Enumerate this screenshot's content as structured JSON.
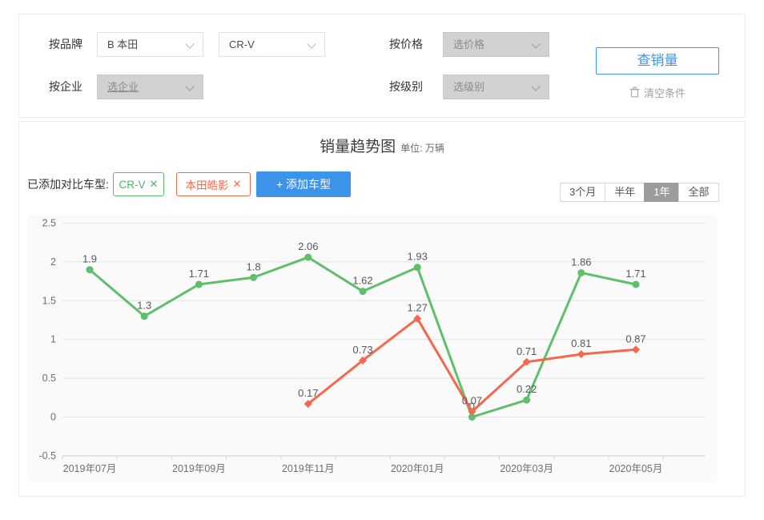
{
  "filters": {
    "brand": {
      "label": "按品牌",
      "select1_value": "B 本田",
      "select2_value": "CR-V"
    },
    "price": {
      "label": "按价格",
      "placeholder": "选价格"
    },
    "company": {
      "label": "按企业",
      "placeholder": "选企业"
    },
    "level": {
      "label": "按级别",
      "placeholder": "选级别"
    },
    "search_button": "查销量",
    "clear_button": "清空条件"
  },
  "chart_panel": {
    "title": "销量趋势图",
    "unit": "单位: 万辆",
    "compare_label": "已添加对比车型:",
    "tags": [
      {
        "label": "CR-V",
        "color": "#4db36a"
      },
      {
        "label": "本田皓影",
        "color": "#f56a4d"
      }
    ],
    "add_button": "+ 添加车型",
    "range_buttons": [
      {
        "label": "3个月",
        "active": false
      },
      {
        "label": "半年",
        "active": false
      },
      {
        "label": "1年",
        "active": true
      },
      {
        "label": "全部",
        "active": false
      }
    ]
  },
  "icons": {
    "close": "✕"
  },
  "colors": {
    "primary_blue": "#3f94e9",
    "green_series": "#5fbf6b",
    "red_series": "#f4684f",
    "grid": "#e3e3e3",
    "axis": "#c7d2dc"
  },
  "chart_data": {
    "type": "line",
    "title": "销量趋势图",
    "unit": "万辆",
    "x": [
      "2019年07月",
      "2019年08月",
      "2019年09月",
      "2019年10月",
      "2019年11月",
      "2019年12月",
      "2020年01月",
      "2020年02月",
      "2020年03月",
      "2020年04月",
      "2020年05月"
    ],
    "x_tick_labels": [
      "2019年07月",
      "2019年09月",
      "2019年11月",
      "2020年01月",
      "2020年03月",
      "2020年05月"
    ],
    "ylim": [
      -0.5,
      2.5
    ],
    "yticks": [
      2.5,
      2,
      1.5,
      1,
      0.5,
      0,
      -0.5
    ],
    "grid": true,
    "legend_position": "none",
    "series": [
      {
        "name": "CR-V",
        "color": "#5fbf6b",
        "marker": "circle",
        "start_index": 0,
        "values": [
          1.9,
          1.3,
          1.71,
          1.8,
          2.06,
          1.62,
          1.93,
          0,
          0.22,
          1.86,
          1.71
        ],
        "labels": [
          "1.9",
          "1.3",
          "1.71",
          "1.8",
          "2.06",
          "1.62",
          "1.93",
          "0",
          "0.22",
          "1.86",
          "1.71"
        ]
      },
      {
        "name": "本田皓影",
        "color": "#f4684f",
        "marker": "diamond",
        "start_index": 4,
        "values": [
          0.17,
          0.73,
          1.27,
          0.07,
          0.71,
          0.81,
          0.87
        ],
        "labels": [
          "0.17",
          "0.73",
          "1.27",
          "0.07",
          "0.71",
          "0.81",
          "0.87"
        ]
      }
    ]
  }
}
